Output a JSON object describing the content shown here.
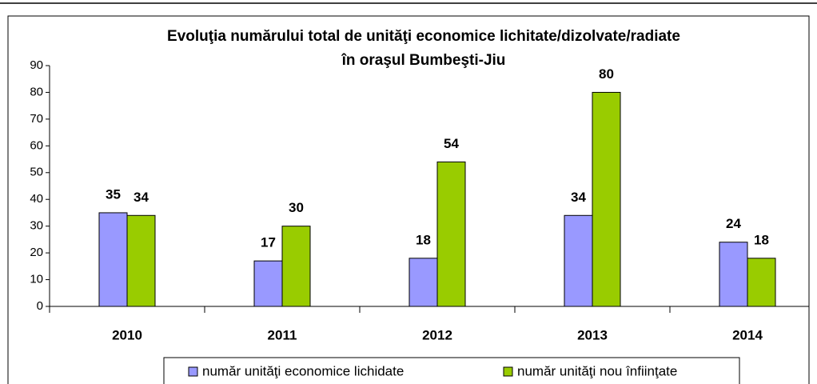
{
  "chart_data": {
    "type": "bar",
    "title": [
      "Evoluţia numărului total de unităţi economice lichitate/dizolvate/radiate",
      "în oraşul Bumbeşti-Jiu"
    ],
    "categories": [
      "2010",
      "2011",
      "2012",
      "2013",
      "2014"
    ],
    "series": [
      {
        "name": "număr unităţi economice lichidate",
        "color": "#9999ff",
        "values": [
          35,
          17,
          18,
          34,
          24
        ]
      },
      {
        "name": "număr unităţi nou înfiinţate",
        "color": "#99cc00",
        "values": [
          34,
          30,
          54,
          80,
          18
        ]
      }
    ],
    "ylim": [
      0,
      90
    ],
    "yticks": [
      0,
      10,
      20,
      30,
      40,
      50,
      60,
      70,
      80,
      90
    ],
    "legend": "bottom"
  }
}
